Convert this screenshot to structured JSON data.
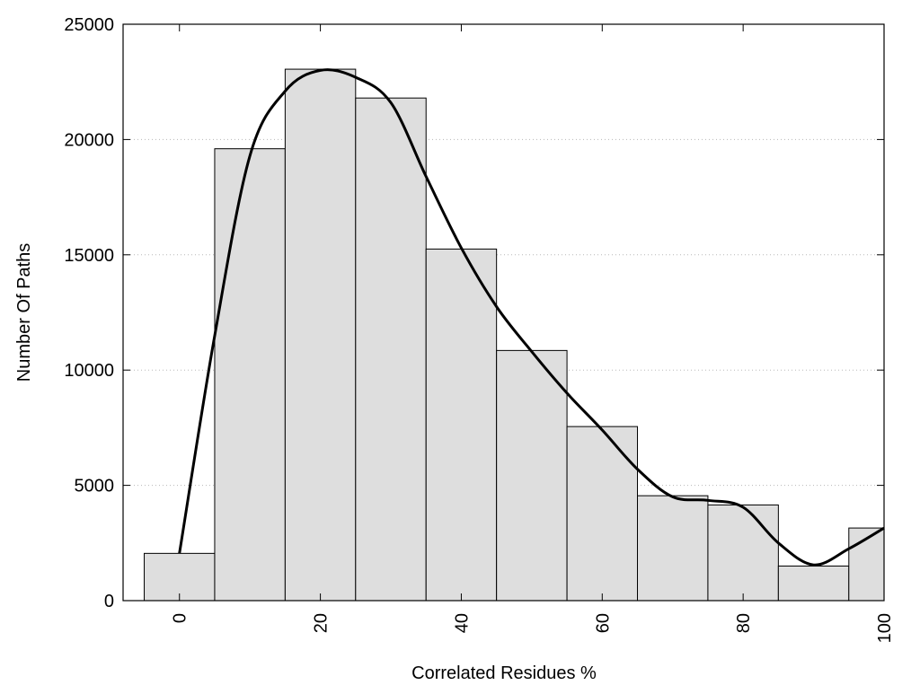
{
  "chart_data": {
    "type": "bar",
    "title": "",
    "xlabel": "Correlated Residues %",
    "ylabel": "Number Of Paths",
    "xlim": [
      -8,
      100
    ],
    "ylim": [
      0,
      25000
    ],
    "grid": true,
    "x_ticks": [
      0,
      20,
      40,
      60,
      80,
      100
    ],
    "y_ticks": [
      0,
      5000,
      10000,
      15000,
      20000,
      25000
    ],
    "bar_width": 10,
    "bars": [
      {
        "x": 0,
        "value": 2050
      },
      {
        "x": 10,
        "value": 19600
      },
      {
        "x": 20,
        "value": 23050
      },
      {
        "x": 30,
        "value": 21800
      },
      {
        "x": 40,
        "value": 15250
      },
      {
        "x": 50,
        "value": 10850
      },
      {
        "x": 60,
        "value": 7550
      },
      {
        "x": 70,
        "value": 4550
      },
      {
        "x": 80,
        "value": 4150
      },
      {
        "x": 90,
        "value": 1500
      },
      {
        "x": 100,
        "value": 3150
      }
    ],
    "curve": {
      "type": "line",
      "x": [
        0,
        5,
        10,
        15,
        20,
        25,
        30,
        35,
        40,
        45,
        50,
        55,
        60,
        65,
        70,
        75,
        80,
        85,
        90,
        95,
        100
      ],
      "values": [
        2050,
        11500,
        19300,
        22100,
        23000,
        22700,
        21600,
        18400,
        15300,
        12750,
        10800,
        9000,
        7400,
        5700,
        4500,
        4350,
        4050,
        2500,
        1550,
        2250,
        3150
      ]
    },
    "colors": {
      "bar_fill": "#dedede",
      "bar_stroke": "#000000",
      "curve": "#000000",
      "grid": "#b8b8b8"
    }
  }
}
